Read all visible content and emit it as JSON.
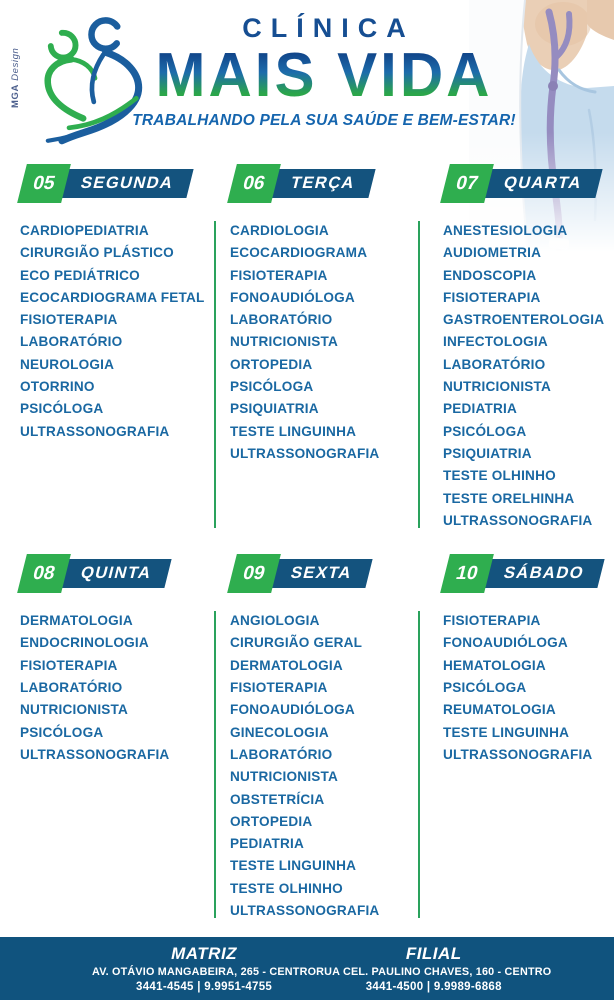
{
  "brand": {
    "design_credit": {
      "name": "MGA",
      "suffix": "Design"
    },
    "clinic_prefix": "CLÍNICA",
    "clinic_name": "MAIS VIDA",
    "tagline": "TRABALHANDO PELA SUA SAÚDE E BEM-ESTAR!"
  },
  "colors": {
    "banner_blue": "#14537e",
    "accent_green": "#2fae4f",
    "divider_green": "#2aa25c",
    "list_text_blue": "#1a68a2",
    "title_blue": "#164e92",
    "tagline_blue": "#1565ae",
    "gradient_top": "#11478b",
    "gradient_bottom": "#2ba64a",
    "footer_blue": "#10537e"
  },
  "schedule": {
    "days": [
      {
        "number": "05",
        "label": "SEGUNDA",
        "specialties": [
          "CARDIOPEDIATRIA",
          "CIRURGIÃO PLÁSTICO",
          "ECO PEDIÁTRICO",
          "ECOCARDIOGRAMA FETAL",
          "FISIOTERAPIA",
          "LABORATÓRIO",
          "NEUROLOGIA",
          "OTORRINO",
          "PSICÓLOGA",
          "ULTRASSONOGRAFIA"
        ]
      },
      {
        "number": "06",
        "label": "TERÇA",
        "specialties": [
          "CARDIOLOGIA",
          "ECOCARDIOGRAMA",
          "FISIOTERAPIA",
          "FONOAUDIÓLOGA",
          "LABORATÓRIO",
          "NUTRICIONISTA",
          "ORTOPEDIA",
          "PSICÓLOGA",
          "PSIQUIATRIA",
          "TESTE LINGUINHA",
          "ULTRASSONOGRAFIA"
        ]
      },
      {
        "number": "07",
        "label": "QUARTA",
        "specialties": [
          "ANESTESIOLOGIA",
          "AUDIOMETRIA",
          "ENDOSCOPIA",
          "FISIOTERAPIA",
          "GASTROENTEROLOGIA",
          "INFECTOLOGIA",
          "LABORATÓRIO",
          "NUTRICIONISTA",
          "PEDIATRIA",
          "PSICÓLOGA",
          "PSIQUIATRIA",
          "TESTE OLHINHO",
          "TESTE ORELHINHA",
          "ULTRASSONOGRAFIA"
        ]
      },
      {
        "number": "08",
        "label": "QUINTA",
        "specialties": [
          "DERMATOLOGIA",
          "ENDOCRINOLOGIA",
          "FISIOTERAPIA",
          "LABORATÓRIO",
          "NUTRICIONISTA",
          "PSICÓLOGA",
          "ULTRASSONOGRAFIA"
        ]
      },
      {
        "number": "09",
        "label": "SEXTA",
        "specialties": [
          "ANGIOLOGIA",
          "CIRURGIÃO GERAL",
          "DERMATOLOGIA",
          "FISIOTERAPIA",
          "FONOAUDIÓLOGA",
          "GINECOLOGIA",
          "LABORATÓRIO",
          "NUTRICIONISTA",
          "OBSTETRÍCIA",
          "ORTOPEDIA",
          "PEDIATRIA",
          "TESTE LINGUINHA",
          "TESTE OLHINHO",
          "ULTRASSONOGRAFIA"
        ]
      },
      {
        "number": "10",
        "label": "SÁBADO",
        "specialties": [
          "FISIOTERAPIA",
          "FONOAUDIÓLOGA",
          "HEMATOLOGIA",
          "PSICÓLOGA",
          "REUMATOLOGIA",
          "TESTE LINGUINHA",
          "ULTRASSONOGRAFIA"
        ]
      }
    ]
  },
  "footer": {
    "locations": [
      {
        "title": "MATRIZ",
        "address": "AV. OTÁVIO MANGABEIRA, 265 - CENTRO",
        "phones": "3441-4545 | 9.9951-4755"
      },
      {
        "title": "FILIAL",
        "address": "RUA CEL. PAULINO CHAVES, 160 - CENTRO",
        "phones": "3441-4500 | 9.9989-6868"
      }
    ]
  }
}
